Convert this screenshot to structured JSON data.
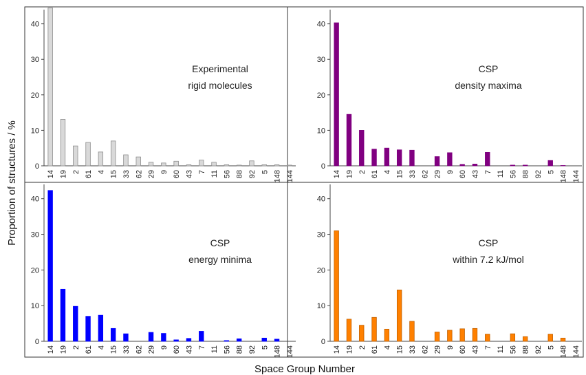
{
  "figure": {
    "ylabel": "Proportion of structures / %",
    "xlabel": "Space Group Number"
  },
  "chart_data": [
    {
      "type": "bar",
      "annotation": [
        "Experimental",
        "rigid molecules"
      ],
      "color": "#d9d9d9",
      "stroke": "#8c8c8c",
      "categories": [
        "14",
        "19",
        "2",
        "61",
        "4",
        "15",
        "33",
        "62",
        "29",
        "9",
        "60",
        "43",
        "7",
        "11",
        "56",
        "88",
        "92",
        "5",
        "148",
        "144"
      ],
      "values": [
        44.5,
        13.1,
        5.6,
        6.6,
        3.9,
        7.0,
        3.1,
        2.5,
        1.0,
        0.8,
        1.3,
        0.3,
        1.6,
        1.0,
        0.3,
        0.2,
        1.4,
        0.3,
        0.3,
        0.2
      ],
      "ylim": [
        0,
        44
      ],
      "yticks": [
        0,
        10,
        20,
        30,
        40
      ]
    },
    {
      "type": "bar",
      "annotation": [
        "CSP",
        "density maxima"
      ],
      "color": "#800080",
      "stroke": "#800080",
      "categories": [
        "14",
        "19",
        "2",
        "61",
        "4",
        "15",
        "33",
        "62",
        "29",
        "9",
        "60",
        "43",
        "7",
        "11",
        "56",
        "88",
        "92",
        "5",
        "148",
        "144"
      ],
      "values": [
        40.3,
        14.5,
        10.0,
        4.7,
        5.0,
        4.5,
        4.4,
        0.0,
        2.6,
        3.7,
        0.4,
        0.5,
        3.8,
        0.0,
        0.2,
        0.2,
        0.0,
        1.5,
        0.1,
        0.0
      ],
      "ylim": [
        0,
        44
      ],
      "yticks": [
        0,
        10,
        20,
        30,
        40
      ]
    },
    {
      "type": "bar",
      "annotation": [
        "CSP",
        "energy minima"
      ],
      "color": "#0000ff",
      "stroke": "#0000ff",
      "categories": [
        "14",
        "19",
        "2",
        "61",
        "4",
        "15",
        "33",
        "62",
        "29",
        "9",
        "60",
        "43",
        "7",
        "11",
        "56",
        "88",
        "92",
        "5",
        "148",
        "144"
      ],
      "values": [
        42.3,
        14.6,
        9.8,
        7.0,
        7.3,
        3.6,
        2.1,
        0.0,
        2.5,
        2.2,
        0.4,
        0.8,
        2.8,
        0.0,
        0.2,
        0.7,
        0.0,
        0.9,
        0.6,
        0.0
      ],
      "ylim": [
        0,
        44
      ],
      "yticks": [
        0,
        10,
        20,
        30,
        40
      ]
    },
    {
      "type": "bar",
      "annotation": [
        "CSP",
        "within 7.2 kJ/mol"
      ],
      "color": "#ff8000",
      "stroke": "#c06000",
      "categories": [
        "14",
        "19",
        "2",
        "61",
        "4",
        "15",
        "33",
        "62",
        "29",
        "9",
        "60",
        "43",
        "7",
        "11",
        "56",
        "88",
        "92",
        "5",
        "148",
        "144"
      ],
      "values": [
        31.0,
        6.2,
        4.5,
        6.7,
        3.4,
        14.4,
        5.6,
        0.0,
        2.6,
        3.1,
        3.5,
        3.6,
        2.0,
        0.0,
        2.1,
        1.3,
        0.0,
        2.0,
        0.9,
        0.0
      ],
      "ylim": [
        0,
        44
      ],
      "yticks": [
        0,
        10,
        20,
        30,
        40
      ]
    }
  ]
}
